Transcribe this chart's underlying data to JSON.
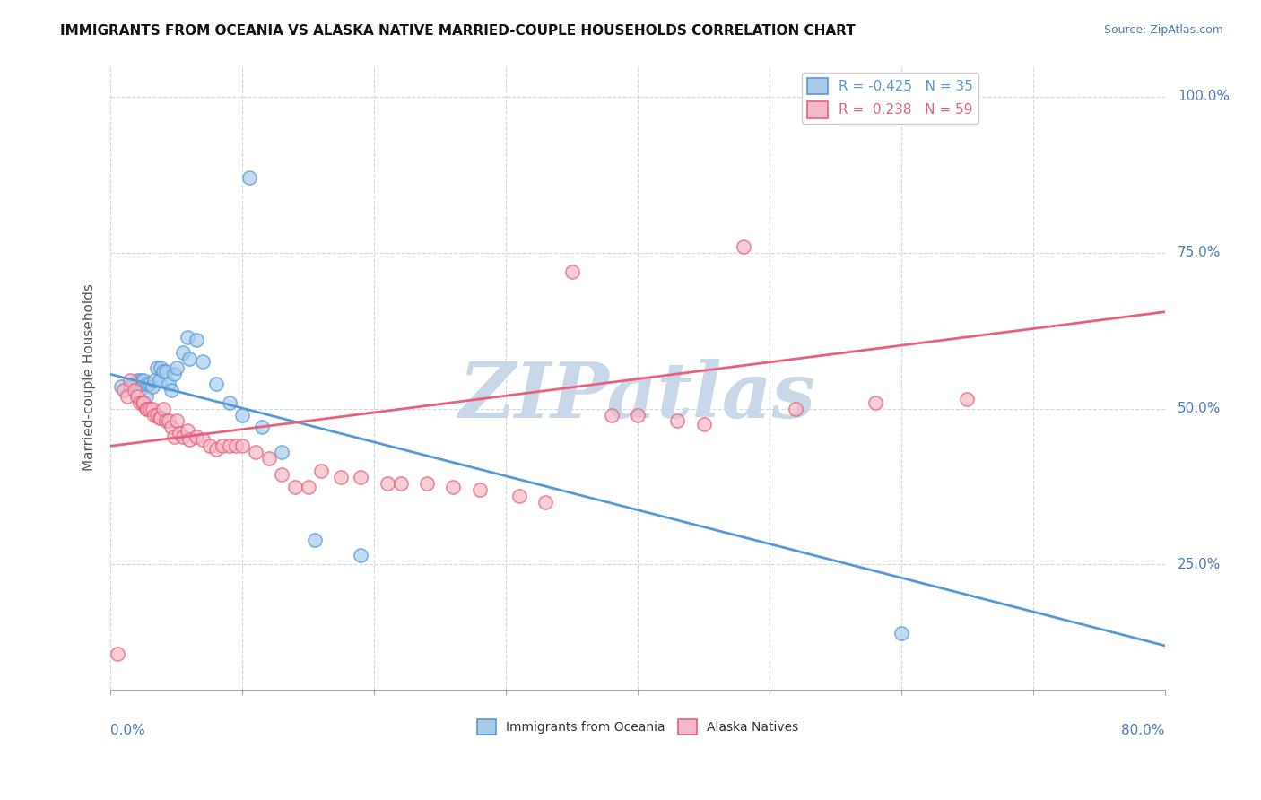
{
  "title": "IMMIGRANTS FROM OCEANIA VS ALASKA NATIVE MARRIED-COUPLE HOUSEHOLDS CORRELATION CHART",
  "source": "Source: ZipAtlas.com",
  "ylabel": "Married-couple Households",
  "right_yticks": [
    "100.0%",
    "75.0%",
    "50.0%",
    "25.0%"
  ],
  "right_ytick_vals": [
    1.0,
    0.75,
    0.5,
    0.25
  ],
  "legend_blue_r": "R = -0.425",
  "legend_blue_n": "N = 35",
  "legend_pink_r": "R =  0.238",
  "legend_pink_n": "N = 59",
  "blue_color": "#a8cce8",
  "pink_color": "#f4b8c8",
  "line_blue_color": "#5599dd",
  "line_pink_color": "#e8607a",
  "background_color": "#ffffff",
  "watermark_color": "#c8d8e8",
  "xlim": [
    0.0,
    0.8
  ],
  "ylim": [
    0.05,
    1.05
  ],
  "blue_line_x0": 0.0,
  "blue_line_y0": 0.555,
  "blue_line_x1": 0.8,
  "blue_line_y1": 0.12,
  "pink_line_x0": 0.0,
  "pink_line_y0": 0.44,
  "pink_line_x1": 0.8,
  "pink_line_y1": 0.655,
  "blue_dots_x": [
    0.008,
    0.015,
    0.018,
    0.02,
    0.022,
    0.023,
    0.025,
    0.027,
    0.028,
    0.03,
    0.032,
    0.033,
    0.035,
    0.037,
    0.038,
    0.04,
    0.042,
    0.044,
    0.046,
    0.048,
    0.05,
    0.055,
    0.058,
    0.06,
    0.065,
    0.07,
    0.08,
    0.09,
    0.1,
    0.115,
    0.13,
    0.155,
    0.19,
    0.6,
    0.105
  ],
  "blue_dots_y": [
    0.535,
    0.535,
    0.54,
    0.545,
    0.53,
    0.545,
    0.545,
    0.52,
    0.54,
    0.54,
    0.535,
    0.545,
    0.565,
    0.545,
    0.565,
    0.56,
    0.56,
    0.54,
    0.53,
    0.555,
    0.565,
    0.59,
    0.615,
    0.58,
    0.61,
    0.575,
    0.54,
    0.51,
    0.49,
    0.47,
    0.43,
    0.29,
    0.265,
    0.14,
    0.87
  ],
  "pink_dots_x": [
    0.005,
    0.01,
    0.013,
    0.015,
    0.018,
    0.02,
    0.022,
    0.024,
    0.025,
    0.027,
    0.028,
    0.03,
    0.032,
    0.033,
    0.035,
    0.037,
    0.038,
    0.04,
    0.042,
    0.044,
    0.046,
    0.048,
    0.05,
    0.052,
    0.055,
    0.058,
    0.06,
    0.065,
    0.07,
    0.075,
    0.08,
    0.085,
    0.09,
    0.095,
    0.1,
    0.11,
    0.12,
    0.13,
    0.14,
    0.15,
    0.16,
    0.175,
    0.19,
    0.21,
    0.22,
    0.24,
    0.26,
    0.28,
    0.31,
    0.33,
    0.35,
    0.38,
    0.4,
    0.43,
    0.45,
    0.48,
    0.52,
    0.58,
    0.65
  ],
  "pink_dots_y": [
    0.107,
    0.53,
    0.52,
    0.545,
    0.53,
    0.52,
    0.51,
    0.51,
    0.51,
    0.5,
    0.5,
    0.5,
    0.5,
    0.49,
    0.49,
    0.485,
    0.485,
    0.5,
    0.48,
    0.48,
    0.47,
    0.455,
    0.48,
    0.46,
    0.455,
    0.465,
    0.45,
    0.455,
    0.45,
    0.44,
    0.435,
    0.44,
    0.44,
    0.44,
    0.44,
    0.43,
    0.42,
    0.395,
    0.375,
    0.375,
    0.4,
    0.39,
    0.39,
    0.38,
    0.38,
    0.38,
    0.375,
    0.37,
    0.36,
    0.35,
    0.72,
    0.49,
    0.49,
    0.48,
    0.475,
    0.76,
    0.5,
    0.51,
    0.515
  ]
}
